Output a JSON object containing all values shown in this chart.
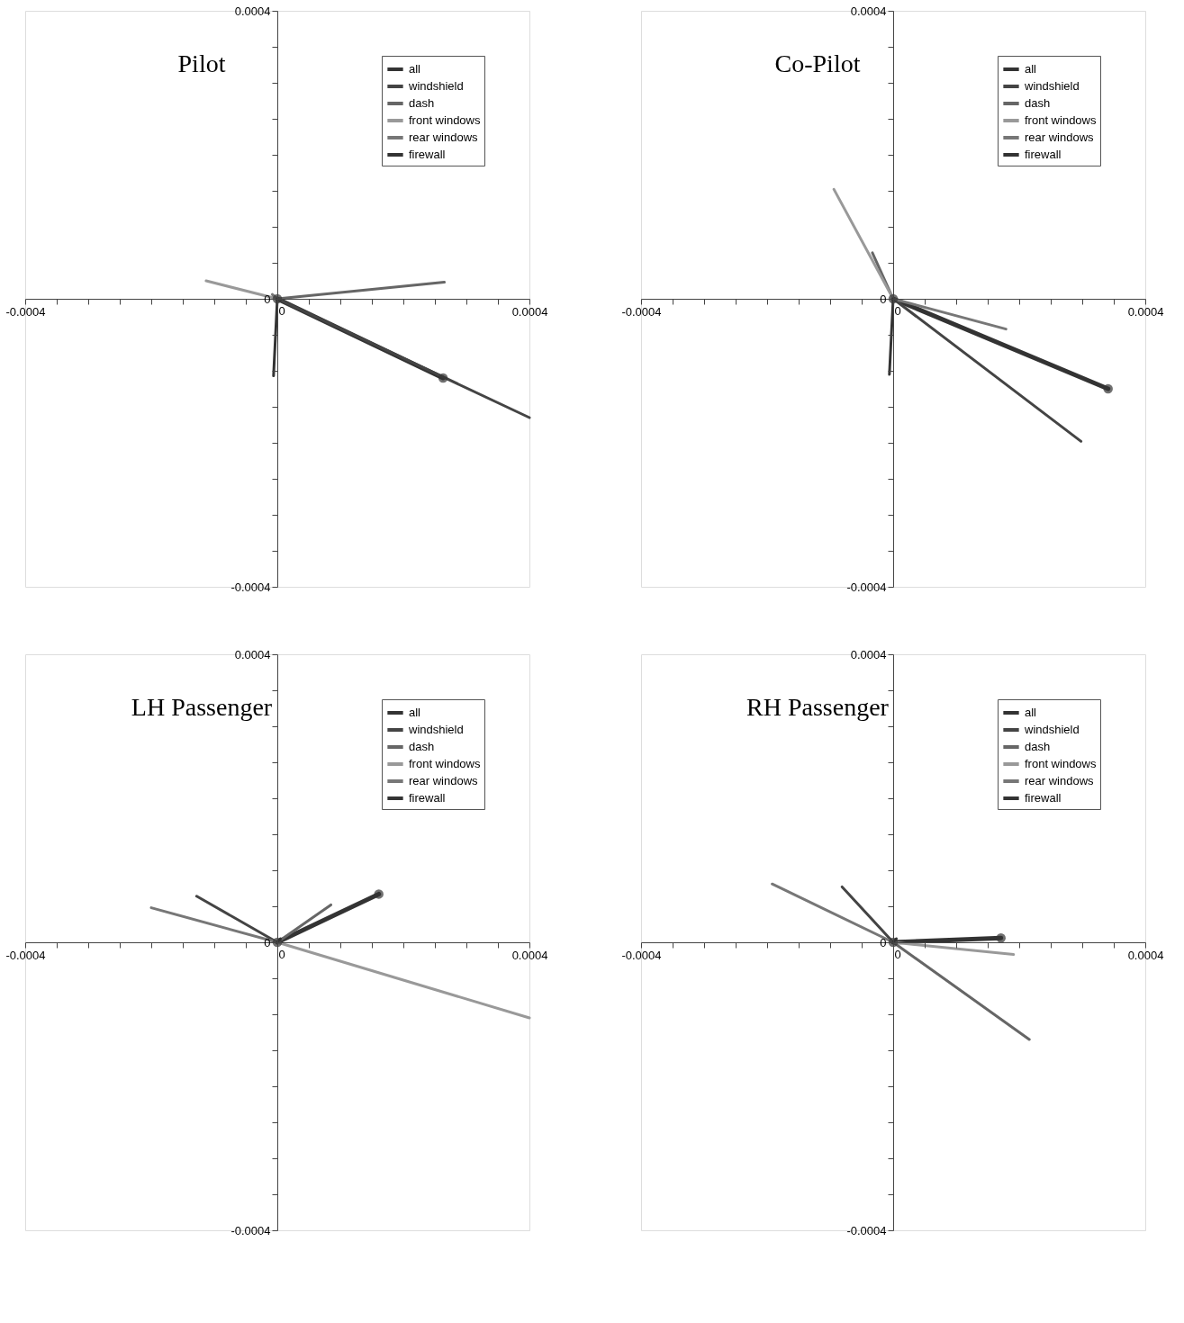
{
  "chart_data": [
    {
      "type": "line",
      "title": "Pilot",
      "legend": "top right",
      "grid": false,
      "xlim": [
        -0.0004,
        0.0004
      ],
      "ylim": [
        -0.0004,
        0.0004
      ],
      "xticks": [
        {
          "value": -0.0004,
          "label": "-0.0004"
        },
        {
          "value": -0.00035,
          "label": null
        },
        {
          "value": -0.0003,
          "label": null
        },
        {
          "value": -0.00025,
          "label": null
        },
        {
          "value": -0.0002,
          "label": null
        },
        {
          "value": -0.00015,
          "label": null
        },
        {
          "value": -0.0001,
          "label": null
        },
        {
          "value": -5e-05,
          "label": null
        },
        {
          "value": 0,
          "label": "0"
        },
        {
          "value": 5e-05,
          "label": null
        },
        {
          "value": 0.0001,
          "label": null
        },
        {
          "value": 0.00015,
          "label": null
        },
        {
          "value": 0.0002,
          "label": null
        },
        {
          "value": 0.00025,
          "label": null
        },
        {
          "value": 0.0003,
          "label": null
        },
        {
          "value": 0.00035,
          "label": null
        },
        {
          "value": 0.0004,
          "label": "0.0004"
        }
      ],
      "yticks": [
        {
          "value": -0.0004,
          "label": "-0.0004"
        },
        {
          "value": -0.00035,
          "label": null
        },
        {
          "value": -0.0003,
          "label": null
        },
        {
          "value": -0.00025,
          "label": null
        },
        {
          "value": -0.0002,
          "label": null
        },
        {
          "value": -0.00015,
          "label": null
        },
        {
          "value": -0.0001,
          "label": null
        },
        {
          "value": -5e-05,
          "label": null
        },
        {
          "value": 0,
          "label": "0"
        },
        {
          "value": 5e-05,
          "label": null
        },
        {
          "value": 0.0001,
          "label": null
        },
        {
          "value": 0.00015,
          "label": null
        },
        {
          "value": 0.0002,
          "label": null
        },
        {
          "value": 0.00025,
          "label": null
        },
        {
          "value": 0.0003,
          "label": null
        },
        {
          "value": 0.00035,
          "label": null
        },
        {
          "value": 0.0004,
          "label": "0.0004"
        }
      ],
      "series": [
        {
          "name": "all",
          "color": "#333333",
          "marker": "circle",
          "x": [
            0,
            0.000263
          ],
          "values": [
            0,
            -0.00011
          ]
        },
        {
          "name": "windshield",
          "color": "#444444",
          "x": [
            0,
            0.0004
          ],
          "values": [
            0,
            -0.000165
          ]
        },
        {
          "name": "dash",
          "color": "#666666",
          "x": [
            0,
            0.000265
          ],
          "values": [
            0,
            2.3e-05
          ]
        },
        {
          "name": "front windows",
          "color": "#999999",
          "x": [
            0,
            -0.000113
          ],
          "values": [
            0,
            2.5e-05
          ]
        },
        {
          "name": "rear windows",
          "color": "#777777",
          "x": [
            0,
            -8e-06
          ],
          "values": [
            0,
            6e-06
          ]
        },
        {
          "name": "firewall",
          "color": "#333333",
          "x": [
            0,
            -6e-06
          ],
          "values": [
            0,
            -0.000107
          ]
        }
      ]
    },
    {
      "type": "line",
      "title": "Co-Pilot",
      "legend": "top right",
      "grid": false,
      "xlim": [
        -0.0004,
        0.0004
      ],
      "ylim": [
        -0.0004,
        0.0004
      ],
      "xticks": [
        {
          "value": -0.0004,
          "label": "-0.0004"
        },
        {
          "value": -0.00035,
          "label": null
        },
        {
          "value": -0.0003,
          "label": null
        },
        {
          "value": -0.00025,
          "label": null
        },
        {
          "value": -0.0002,
          "label": null
        },
        {
          "value": -0.00015,
          "label": null
        },
        {
          "value": -0.0001,
          "label": null
        },
        {
          "value": -5e-05,
          "label": null
        },
        {
          "value": 0,
          "label": "0"
        },
        {
          "value": 5e-05,
          "label": null
        },
        {
          "value": 0.0001,
          "label": null
        },
        {
          "value": 0.00015,
          "label": null
        },
        {
          "value": 0.0002,
          "label": null
        },
        {
          "value": 0.00025,
          "label": null
        },
        {
          "value": 0.0003,
          "label": null
        },
        {
          "value": 0.00035,
          "label": null
        },
        {
          "value": 0.0004,
          "label": "0.0004"
        }
      ],
      "yticks": [
        {
          "value": -0.0004,
          "label": "-0.0004"
        },
        {
          "value": -0.00035,
          "label": null
        },
        {
          "value": -0.0003,
          "label": null
        },
        {
          "value": -0.00025,
          "label": null
        },
        {
          "value": -0.0002,
          "label": null
        },
        {
          "value": -0.00015,
          "label": null
        },
        {
          "value": -0.0001,
          "label": null
        },
        {
          "value": -5e-05,
          "label": null
        },
        {
          "value": 0,
          "label": "0"
        },
        {
          "value": 5e-05,
          "label": null
        },
        {
          "value": 0.0001,
          "label": null
        },
        {
          "value": 0.00015,
          "label": null
        },
        {
          "value": 0.0002,
          "label": null
        },
        {
          "value": 0.00025,
          "label": null
        },
        {
          "value": 0.0003,
          "label": null
        },
        {
          "value": 0.00035,
          "label": null
        },
        {
          "value": 0.0004,
          "label": "0.0004"
        }
      ],
      "series": [
        {
          "name": "all",
          "color": "#333333",
          "marker": "circle",
          "x": [
            0,
            0.000341
          ],
          "values": [
            0,
            -0.000125
          ]
        },
        {
          "name": "windshield",
          "color": "#444444",
          "x": [
            0,
            0.000298
          ],
          "values": [
            0,
            -0.000198
          ]
        },
        {
          "name": "dash",
          "color": "#666666",
          "x": [
            0,
            -3.3e-05
          ],
          "values": [
            0,
            6.4e-05
          ]
        },
        {
          "name": "front windows",
          "color": "#999999",
          "x": [
            0,
            -9.4e-05
          ],
          "values": [
            0,
            0.000152
          ]
        },
        {
          "name": "rear windows",
          "color": "#777777",
          "x": [
            0,
            0.000179
          ],
          "values": [
            0,
            -4.2e-05
          ]
        },
        {
          "name": "firewall",
          "color": "#333333",
          "x": [
            0,
            -6e-06
          ],
          "values": [
            0,
            -0.000105
          ]
        }
      ]
    },
    {
      "type": "line",
      "title": "LH Passenger",
      "legend": "top right",
      "grid": false,
      "xlim": [
        -0.0004,
        0.0004
      ],
      "ylim": [
        -0.0004,
        0.0004
      ],
      "xticks": [
        {
          "value": -0.0004,
          "label": "-0.0004"
        },
        {
          "value": -0.00035,
          "label": null
        },
        {
          "value": -0.0003,
          "label": null
        },
        {
          "value": -0.00025,
          "label": null
        },
        {
          "value": -0.0002,
          "label": null
        },
        {
          "value": -0.00015,
          "label": null
        },
        {
          "value": -0.0001,
          "label": null
        },
        {
          "value": -5e-05,
          "label": null
        },
        {
          "value": 0,
          "label": "0"
        },
        {
          "value": 5e-05,
          "label": null
        },
        {
          "value": 0.0001,
          "label": null
        },
        {
          "value": 0.00015,
          "label": null
        },
        {
          "value": 0.0002,
          "label": null
        },
        {
          "value": 0.00025,
          "label": null
        },
        {
          "value": 0.0003,
          "label": null
        },
        {
          "value": 0.00035,
          "label": null
        },
        {
          "value": 0.0004,
          "label": "0.0004"
        }
      ],
      "yticks": [
        {
          "value": -0.0004,
          "label": "-0.0004"
        },
        {
          "value": -0.00035,
          "label": null
        },
        {
          "value": -0.0003,
          "label": null
        },
        {
          "value": -0.00025,
          "label": null
        },
        {
          "value": -0.0002,
          "label": null
        },
        {
          "value": -0.00015,
          "label": null
        },
        {
          "value": -0.0001,
          "label": null
        },
        {
          "value": -5e-05,
          "label": null
        },
        {
          "value": 0,
          "label": "0"
        },
        {
          "value": 5e-05,
          "label": null
        },
        {
          "value": 0.0001,
          "label": null
        },
        {
          "value": 0.00015,
          "label": null
        },
        {
          "value": 0.0002,
          "label": null
        },
        {
          "value": 0.00025,
          "label": null
        },
        {
          "value": 0.0003,
          "label": null
        },
        {
          "value": 0.00035,
          "label": null
        },
        {
          "value": 0.0004,
          "label": "0.0004"
        }
      ],
      "series": [
        {
          "name": "all",
          "color": "#333333",
          "marker": "circle",
          "x": [
            0,
            0.000161
          ],
          "values": [
            0,
            6.7e-05
          ]
        },
        {
          "name": "windshield",
          "color": "#444444",
          "x": [
            0,
            -0.000128
          ],
          "values": [
            0,
            6.4e-05
          ]
        },
        {
          "name": "dash",
          "color": "#666666",
          "x": [
            0,
            8.5e-05
          ],
          "values": [
            0,
            5.2e-05
          ]
        },
        {
          "name": "front windows",
          "color": "#999999",
          "x": [
            0,
            0.0004
          ],
          "values": [
            0,
            -0.000105
          ]
        },
        {
          "name": "rear windows",
          "color": "#777777",
          "x": [
            0,
            -0.0002
          ],
          "values": [
            0,
            4.8e-05
          ]
        },
        {
          "name": "firewall",
          "color": "#333333",
          "x": [
            0,
            5e-06
          ],
          "values": [
            0,
            5e-06
          ]
        }
      ]
    },
    {
      "type": "line",
      "title": "RH Passenger",
      "legend": "top right",
      "grid": false,
      "xlim": [
        -0.0004,
        0.0004
      ],
      "ylim": [
        -0.0004,
        0.0004
      ],
      "xticks": [
        {
          "value": -0.0004,
          "label": "-0.0004"
        },
        {
          "value": -0.00035,
          "label": null
        },
        {
          "value": -0.0003,
          "label": null
        },
        {
          "value": -0.00025,
          "label": null
        },
        {
          "value": -0.0002,
          "label": null
        },
        {
          "value": -0.00015,
          "label": null
        },
        {
          "value": -0.0001,
          "label": null
        },
        {
          "value": -5e-05,
          "label": null
        },
        {
          "value": 0,
          "label": "0"
        },
        {
          "value": 5e-05,
          "label": null
        },
        {
          "value": 0.0001,
          "label": null
        },
        {
          "value": 0.00015,
          "label": null
        },
        {
          "value": 0.0002,
          "label": null
        },
        {
          "value": 0.00025,
          "label": null
        },
        {
          "value": 0.0003,
          "label": null
        },
        {
          "value": 0.00035,
          "label": null
        },
        {
          "value": 0.0004,
          "label": "0.0004"
        }
      ],
      "yticks": [
        {
          "value": -0.0004,
          "label": "-0.0004"
        },
        {
          "value": -0.00035,
          "label": null
        },
        {
          "value": -0.0003,
          "label": null
        },
        {
          "value": -0.00025,
          "label": null
        },
        {
          "value": -0.0002,
          "label": null
        },
        {
          "value": -0.00015,
          "label": null
        },
        {
          "value": -0.0001,
          "label": null
        },
        {
          "value": -5e-05,
          "label": null
        },
        {
          "value": 0,
          "label": "0"
        },
        {
          "value": 5e-05,
          "label": null
        },
        {
          "value": 0.0001,
          "label": null
        },
        {
          "value": 0.00015,
          "label": null
        },
        {
          "value": 0.0002,
          "label": null
        },
        {
          "value": 0.00025,
          "label": null
        },
        {
          "value": 0.0003,
          "label": null
        },
        {
          "value": 0.00035,
          "label": null
        },
        {
          "value": 0.0004,
          "label": "0.0004"
        }
      ],
      "series": [
        {
          "name": "all",
          "color": "#333333",
          "marker": "circle",
          "x": [
            0,
            0.000171
          ],
          "values": [
            0,
            6e-06
          ]
        },
        {
          "name": "windshield",
          "color": "#444444",
          "x": [
            0,
            -8.1e-05
          ],
          "values": [
            0,
            7.7e-05
          ]
        },
        {
          "name": "dash",
          "color": "#666666",
          "x": [
            0,
            0.000216
          ],
          "values": [
            0,
            -0.000135
          ]
        },
        {
          "name": "front windows",
          "color": "#999999",
          "x": [
            0,
            0.000191
          ],
          "values": [
            0,
            -1.7e-05
          ]
        },
        {
          "name": "rear windows",
          "color": "#777777",
          "x": [
            0,
            -0.000192
          ],
          "values": [
            0,
            8.1e-05
          ]
        },
        {
          "name": "firewall",
          "color": "#333333",
          "x": [
            0,
            5e-06
          ],
          "values": [
            0,
            5e-06
          ]
        }
      ]
    }
  ]
}
